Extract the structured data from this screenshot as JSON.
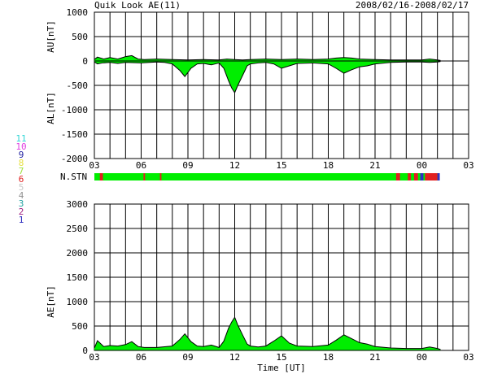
{
  "header": {
    "title": "Quik Look AE(11)",
    "date_range": "2008/02/16-2008/02/17"
  },
  "station_legend": {
    "items": [
      {
        "label": "11",
        "color": "#33d6d6"
      },
      {
        "label": "10",
        "color": "#e040e0"
      },
      {
        "label": "9",
        "color": "#2020a0"
      },
      {
        "label": "8",
        "color": "#e6e040"
      },
      {
        "label": "7",
        "color": "#a0e040"
      },
      {
        "label": "6",
        "color": "#e02020"
      },
      {
        "label": "5",
        "color": "#c8c8c8"
      },
      {
        "label": "4",
        "color": "#909090"
      },
      {
        "label": "3",
        "color": "#20a0a0"
      },
      {
        "label": "2",
        "color": "#a02080"
      },
      {
        "label": "1",
        "color": "#3030c0"
      }
    ]
  },
  "chart_data": [
    {
      "type": "area",
      "panel": "AU/AL",
      "ylabel_upper": "AU[nT]",
      "ylabel_lower": "AL[nT]",
      "ylim": [
        -2000,
        1000
      ],
      "yticks": [
        1000,
        500,
        0,
        -500,
        -1000,
        -1500,
        -2000
      ],
      "xlim": [
        3,
        27
      ],
      "xtick_labels": [
        "03",
        "06",
        "09",
        "12",
        "15",
        "18",
        "21",
        "00",
        "03"
      ],
      "grid": true,
      "fill_color": "#00ee00",
      "AU": {
        "x": [
          3.0,
          3.2,
          3.6,
          4.0,
          4.5,
          5.0,
          5.4,
          5.8,
          6.2,
          7.0,
          8.0,
          9.0,
          10.0,
          11.0,
          11.5,
          12.0,
          12.5,
          13.0,
          14.0,
          15.0,
          16.0,
          17.0,
          18.0,
          18.5,
          19.0,
          19.5,
          20.0,
          21.0,
          22.0,
          23.0,
          24.0,
          24.5,
          25.0,
          25.2
        ],
        "y": [
          30,
          80,
          40,
          70,
          40,
          90,
          110,
          40,
          30,
          40,
          30,
          20,
          30,
          20,
          40,
          30,
          20,
          30,
          40,
          30,
          40,
          30,
          40,
          60,
          70,
          60,
          40,
          30,
          20,
          20,
          20,
          40,
          20,
          10
        ]
      },
      "AL": {
        "x": [
          3.0,
          3.2,
          3.5,
          4.0,
          4.5,
          5.0,
          6.0,
          7.0,
          7.5,
          8.0,
          8.5,
          8.8,
          9.2,
          9.6,
          10.0,
          10.5,
          11.0,
          11.3,
          11.6,
          11.8,
          12.0,
          12.2,
          12.5,
          12.8,
          13.0,
          13.5,
          14.0,
          14.5,
          15.0,
          15.5,
          16.0,
          17.0,
          18.0,
          18.5,
          19.0,
          19.5,
          20.0,
          20.5,
          21.0,
          22.0,
          23.0,
          24.0,
          24.5,
          25.0,
          25.2
        ],
        "y": [
          -20,
          -60,
          -40,
          -30,
          -50,
          -30,
          -40,
          -20,
          -30,
          -60,
          -200,
          -320,
          -150,
          -60,
          -50,
          -80,
          -40,
          -150,
          -400,
          -550,
          -650,
          -500,
          -300,
          -100,
          -60,
          -40,
          -30,
          -60,
          -150,
          -100,
          -50,
          -40,
          -60,
          -150,
          -250,
          -180,
          -120,
          -100,
          -60,
          -30,
          -20,
          -20,
          -30,
          -20,
          -10
        ]
      }
    },
    {
      "type": "area",
      "panel": "AE",
      "ylabel": "AE[nT]",
      "xlabel": "Time [UT]",
      "ylim": [
        0,
        3000
      ],
      "yticks": [
        0,
        500,
        1000,
        1500,
        2000,
        2500,
        3000
      ],
      "xlim": [
        3,
        27
      ],
      "xtick_labels": [
        "03",
        "06",
        "09",
        "12",
        "15",
        "18",
        "21",
        "00",
        "03"
      ],
      "grid": true,
      "fill_color": "#00ee00",
      "x": [
        3.0,
        3.2,
        3.6,
        4.0,
        4.5,
        5.0,
        5.4,
        5.8,
        6.2,
        7.0,
        8.0,
        8.5,
        8.8,
        9.2,
        9.6,
        10.0,
        10.5,
        11.0,
        11.3,
        11.6,
        11.8,
        12.0,
        12.2,
        12.5,
        12.8,
        13.0,
        13.5,
        14.0,
        14.5,
        15.0,
        15.5,
        16.0,
        17.0,
        18.0,
        18.5,
        19.0,
        19.5,
        20.0,
        20.5,
        21.0,
        22.0,
        23.0,
        24.0,
        24.5,
        25.0,
        25.2
      ],
      "y": [
        50,
        200,
        80,
        100,
        90,
        120,
        180,
        80,
        60,
        60,
        90,
        230,
        340,
        180,
        90,
        80,
        110,
        60,
        190,
        450,
        580,
        680,
        520,
        320,
        130,
        90,
        70,
        90,
        190,
        300,
        150,
        90,
        80,
        110,
        210,
        320,
        240,
        160,
        130,
        80,
        50,
        40,
        40,
        70,
        40,
        20
      ]
    }
  ],
  "station_bar": {
    "label": "N.STN",
    "base_color": "#00ee00",
    "segments": [
      {
        "start": 3.35,
        "end": 3.55,
        "color": "#e02020"
      },
      {
        "start": 6.15,
        "end": 6.25,
        "color": "#e02020"
      },
      {
        "start": 7.2,
        "end": 7.3,
        "color": "#e02020"
      },
      {
        "start": 22.35,
        "end": 22.6,
        "color": "#e02020"
      },
      {
        "start": 23.1,
        "end": 23.3,
        "color": "#e02020"
      },
      {
        "start": 23.5,
        "end": 23.75,
        "color": "#e02020"
      },
      {
        "start": 23.9,
        "end": 24.1,
        "color": "#3030c0"
      },
      {
        "start": 24.2,
        "end": 25.0,
        "color": "#e02020"
      },
      {
        "start": 25.0,
        "end": 25.15,
        "color": "#3030c0"
      }
    ]
  }
}
